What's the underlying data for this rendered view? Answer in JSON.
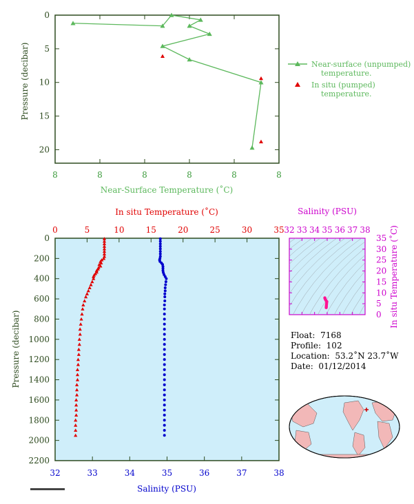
{
  "top_chart": {
    "xlabel": "Near-Surface Temperature (˚C)",
    "ylabel": "Pressure (decibar)",
    "x_tick_labels": [
      "8",
      "8",
      "8",
      "8",
      "8",
      "8"
    ],
    "y_ticks": [
      0,
      5,
      10,
      15,
      20
    ],
    "legend": {
      "line_label_1": "Near-surface (unpumped)",
      "line_label_2": "temperature.",
      "marker_label_1": "In situ (pumped)",
      "marker_label_2": "temperature."
    },
    "colors": {
      "line": "#5cb85c",
      "marker": "#e00000",
      "axis_text": "#3a9a3a",
      "label_text": "#5cb85c"
    }
  },
  "bottom_chart": {
    "top_xlabel": "In situ Temperature (˚C)",
    "bottom_xlabel": "Salinity (PSU)",
    "ylabel": "Pressure (decibar)",
    "temp_ticks": [
      0,
      5,
      10,
      15,
      20,
      25,
      30,
      35
    ],
    "sal_ticks": [
      32,
      33,
      34,
      35,
      36,
      37,
      38
    ],
    "pressure_ticks": [
      0,
      200,
      400,
      600,
      800,
      1000,
      1200,
      1400,
      1600,
      1800,
      2000,
      2200
    ],
    "colors": {
      "temperature": "#e00000",
      "salinity": "#0000cc",
      "background": "#cfeefa",
      "label_pressure": "#2d4a1e"
    }
  },
  "ts_chart": {
    "top_label": "Salinity (PSU)",
    "right_label": "In situ Temperature (˚C)",
    "sal_ticks": [
      32,
      33,
      34,
      35,
      36,
      37,
      38
    ],
    "temp_ticks": [
      0,
      5,
      10,
      15,
      20,
      25,
      30,
      35
    ],
    "colors": {
      "axis": "#cc00cc",
      "points": "#ff1493"
    }
  },
  "float_info": {
    "float_label": "Float:",
    "float_value": "7168",
    "profile_label": "Profile:",
    "profile_value": "102",
    "location_label": "Location:",
    "location_value": "53.2˚N  23.7˚W",
    "date_label": "Date:",
    "date_value": "01/12/2014"
  },
  "chart_data": [
    {
      "type": "line",
      "xlabel": "Near-Surface Temperature (˚C)",
      "ylabel": "Pressure (decibar)",
      "ylim": [
        22,
        0
      ],
      "xlim": [
        0,
        1
      ],
      "series": [
        {
          "name": "Near-surface (unpumped) temperature.",
          "points": [
            [
              0.08,
              1.2
            ],
            [
              0.48,
              1.6
            ],
            [
              0.52,
              0.0
            ],
            [
              0.65,
              0.7
            ],
            [
              0.6,
              1.6
            ],
            [
              0.69,
              2.8
            ],
            [
              0.48,
              4.6
            ],
            [
              0.6,
              6.6
            ],
            [
              0.92,
              10.0
            ],
            [
              0.88,
              19.7
            ]
          ]
        },
        {
          "name": "In situ (pumped) temperature.",
          "points": [
            [
              0.48,
              6.1
            ],
            [
              0.92,
              9.4
            ],
            [
              0.92,
              18.8
            ]
          ]
        }
      ]
    },
    {
      "type": "scatter",
      "xlabel": "Salinity (PSU)",
      "ylabel": "Pressure (decibar)",
      "top_xlabel": "In situ Temperature (˚C)",
      "ylim": [
        2200,
        0
      ],
      "series": [
        {
          "name": "In situ Temperature (˚C)",
          "x_axis": "top",
          "points": [
            [
              7.7,
              5
            ],
            [
              7.7,
              30
            ],
            [
              7.7,
              55
            ],
            [
              7.7,
              80
            ],
            [
              7.7,
              105
            ],
            [
              7.7,
              130
            ],
            [
              7.7,
              155
            ],
            [
              7.7,
              180
            ],
            [
              7.6,
              200
            ],
            [
              7.3,
              215
            ],
            [
              7.1,
              230
            ],
            [
              7.2,
              245
            ],
            [
              6.9,
              260
            ],
            [
              7.1,
              275
            ],
            [
              6.8,
              290
            ],
            [
              6.7,
              305
            ],
            [
              6.5,
              320
            ],
            [
              6.5,
              335
            ],
            [
              6.3,
              350
            ],
            [
              6.1,
              365
            ],
            [
              6.0,
              380
            ],
            [
              6.0,
              400
            ],
            [
              5.8,
              430
            ],
            [
              5.6,
              460
            ],
            [
              5.4,
              490
            ],
            [
              5.2,
              520
            ],
            [
              5.0,
              550
            ],
            [
              4.8,
              580
            ],
            [
              4.6,
              620
            ],
            [
              4.4,
              660
            ],
            [
              4.3,
              700
            ],
            [
              4.2,
              750
            ],
            [
              4.1,
              800
            ],
            [
              4.0,
              850
            ],
            [
              3.9,
              900
            ],
            [
              3.9,
              950
            ],
            [
              3.8,
              1000
            ],
            [
              3.8,
              1050
            ],
            [
              3.7,
              1100
            ],
            [
              3.7,
              1150
            ],
            [
              3.6,
              1200
            ],
            [
              3.6,
              1250
            ],
            [
              3.5,
              1300
            ],
            [
              3.5,
              1350
            ],
            [
              3.5,
              1400
            ],
            [
              3.4,
              1450
            ],
            [
              3.4,
              1500
            ],
            [
              3.4,
              1550
            ],
            [
              3.3,
              1600
            ],
            [
              3.3,
              1650
            ],
            [
              3.3,
              1700
            ],
            [
              3.3,
              1750
            ],
            [
              3.2,
              1800
            ],
            [
              3.2,
              1850
            ],
            [
              3.2,
              1900
            ],
            [
              3.2,
              1950
            ]
          ]
        },
        {
          "name": "Salinity (PSU)",
          "x_axis": "bottom",
          "points": [
            [
              34.82,
              5
            ],
            [
              34.82,
              30
            ],
            [
              34.82,
              55
            ],
            [
              34.82,
              80
            ],
            [
              34.82,
              105
            ],
            [
              34.82,
              130
            ],
            [
              34.82,
              155
            ],
            [
              34.82,
              180
            ],
            [
              34.81,
              200
            ],
            [
              34.8,
              215
            ],
            [
              34.81,
              230
            ],
            [
              34.85,
              245
            ],
            [
              34.88,
              260
            ],
            [
              34.89,
              280
            ],
            [
              34.89,
              300
            ],
            [
              34.89,
              320
            ],
            [
              34.9,
              340
            ],
            [
              34.92,
              360
            ],
            [
              34.95,
              380
            ],
            [
              34.98,
              400
            ],
            [
              34.97,
              430
            ],
            [
              34.96,
              460
            ],
            [
              34.95,
              490
            ],
            [
              34.95,
              520
            ],
            [
              34.94,
              550
            ],
            [
              34.94,
              580
            ],
            [
              34.94,
              620
            ],
            [
              34.93,
              660
            ],
            [
              34.93,
              700
            ],
            [
              34.93,
              750
            ],
            [
              34.93,
              800
            ],
            [
              34.93,
              850
            ],
            [
              34.93,
              900
            ],
            [
              34.93,
              950
            ],
            [
              34.93,
              1000
            ],
            [
              34.93,
              1050
            ],
            [
              34.93,
              1100
            ],
            [
              34.93,
              1150
            ],
            [
              34.93,
              1200
            ],
            [
              34.93,
              1250
            ],
            [
              34.93,
              1300
            ],
            [
              34.93,
              1350
            ],
            [
              34.93,
              1400
            ],
            [
              34.93,
              1450
            ],
            [
              34.93,
              1500
            ],
            [
              34.93,
              1550
            ],
            [
              34.93,
              1600
            ],
            [
              34.93,
              1650
            ],
            [
              34.93,
              1700
            ],
            [
              34.93,
              1750
            ],
            [
              34.93,
              1800
            ],
            [
              34.93,
              1850
            ],
            [
              34.93,
              1900
            ],
            [
              34.93,
              1950
            ]
          ]
        }
      ]
    },
    {
      "type": "scatter",
      "xlabel": "Salinity (PSU)",
      "ylabel": "In situ Temperature (˚C)",
      "xlim": [
        32,
        38
      ],
      "ylim": [
        0,
        35
      ],
      "series": [
        {
          "points": [
            [
              34.92,
              3.2
            ],
            [
              34.93,
              3.6
            ],
            [
              34.93,
              4.0
            ],
            [
              34.94,
              4.5
            ],
            [
              34.95,
              5.0
            ],
            [
              34.96,
              5.6
            ],
            [
              34.97,
              6.0
            ],
            [
              34.9,
              6.5
            ],
            [
              34.85,
              7.0
            ],
            [
              34.82,
              7.5
            ],
            [
              34.81,
              7.7
            ]
          ]
        }
      ]
    }
  ]
}
